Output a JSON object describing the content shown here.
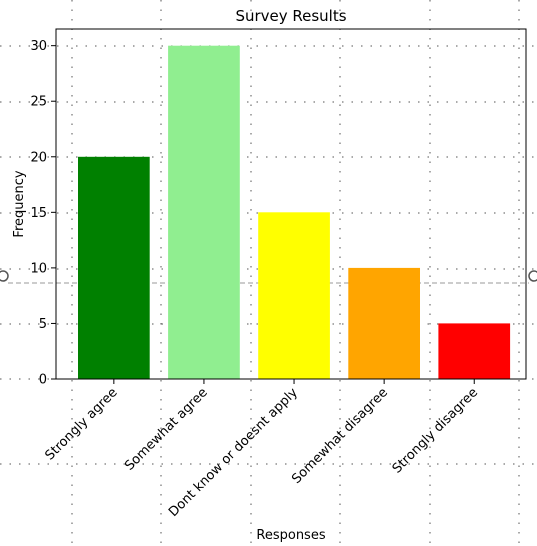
{
  "chart_data": {
    "type": "bar",
    "title": "Survey Results",
    "xlabel": "Responses",
    "ylabel": "Frequency",
    "categories": [
      "Strongly agree",
      "Somewhat agree",
      "Dont know or doesnt apply",
      "Somewhat disagree",
      "Strongly disagree"
    ],
    "values": [
      20,
      30,
      15,
      10,
      5
    ],
    "colors": [
      "#008000",
      "#90ee90",
      "#ffff00",
      "#ffa500",
      "#ff0000"
    ],
    "ylim": [
      0,
      31.5
    ],
    "yticks": [
      "0",
      "5",
      "10",
      "15",
      "20",
      "25",
      "30"
    ],
    "grid": false,
    "legend": "none"
  }
}
